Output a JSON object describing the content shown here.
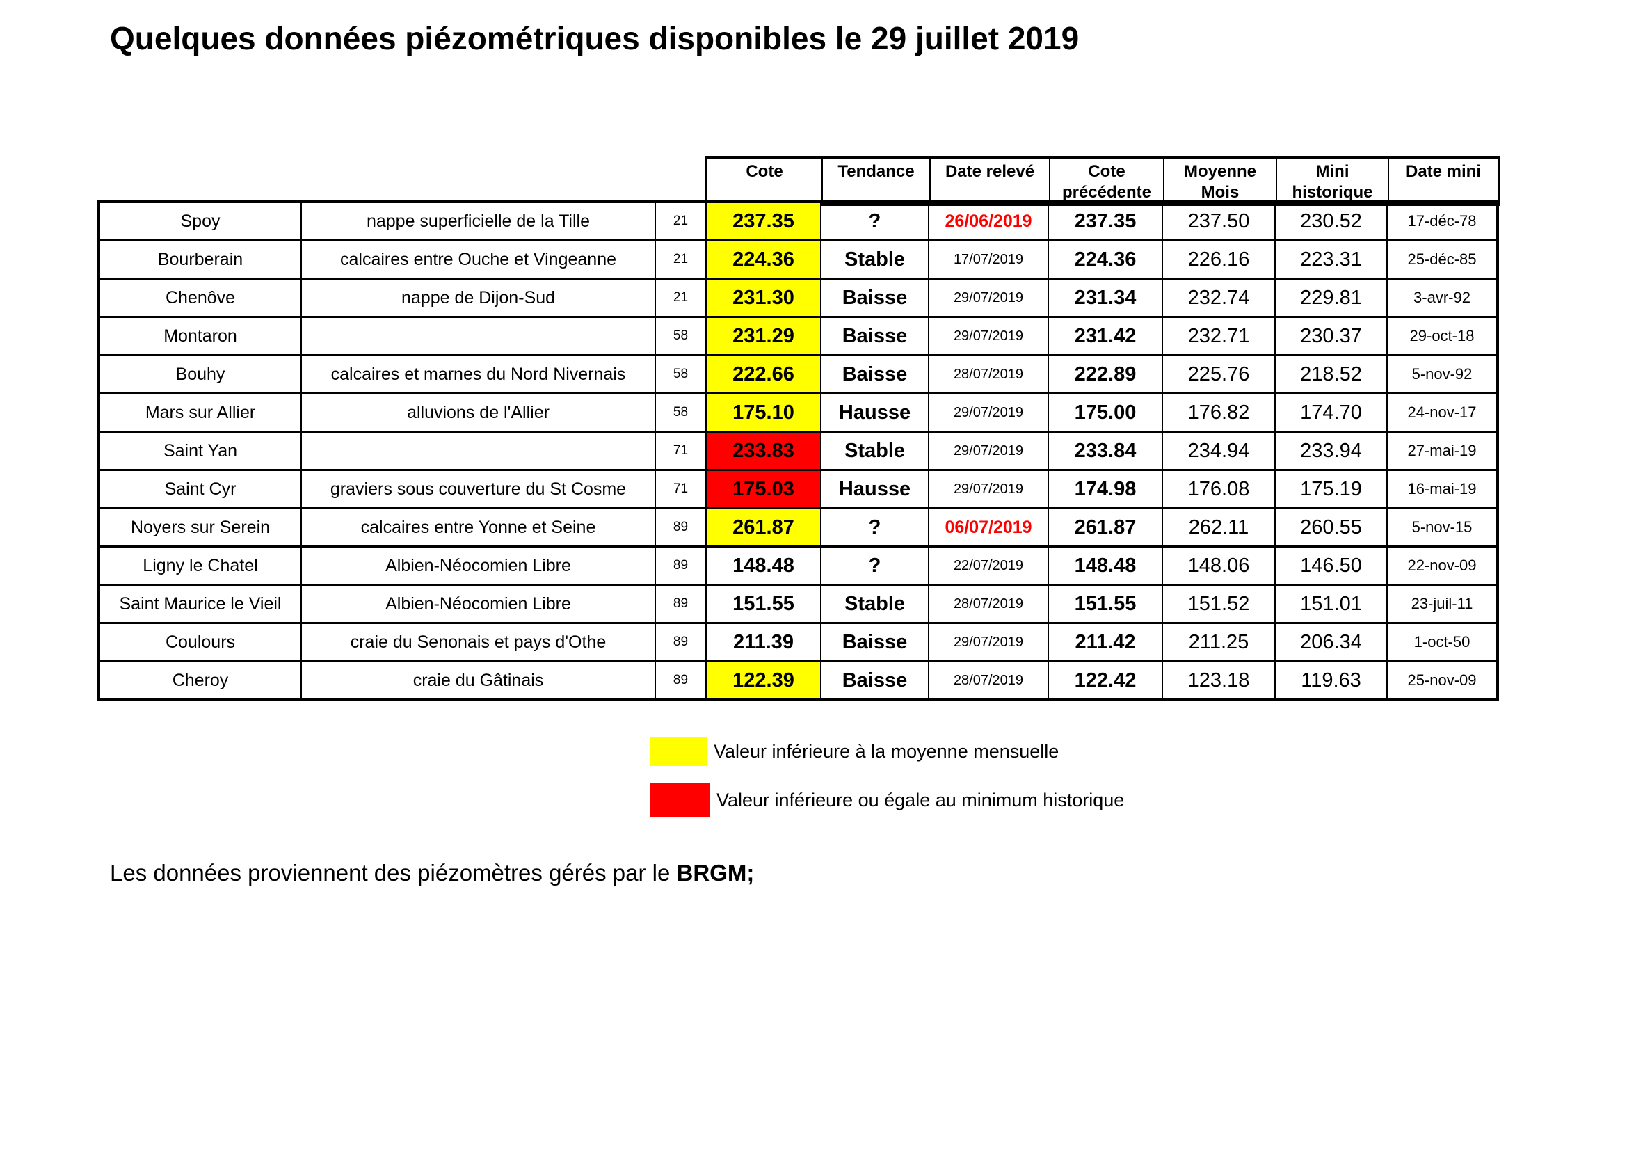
{
  "title": "Quelques données piézométriques disponibles le 29 juillet 2019",
  "colors": {
    "below_monthly_mean": "#FFFF00",
    "below_historic_min": "#FF0000",
    "alert_date_text": "#FF0000"
  },
  "table": {
    "headers": [
      "Cote",
      "Tendance",
      "Date relevé",
      "Cote précédente",
      "Moyenne Mois",
      "Mini historique",
      "Date mini"
    ],
    "rows": [
      {
        "station": "Spoy",
        "aquifer": "nappe superficielle de la Tille",
        "dept": "21",
        "cote": "237.35",
        "cote_highlight": "yellow",
        "tendance": "?",
        "date_releve": "26/06/2019",
        "date_releve_alert": true,
        "cote_precedente": "237.35",
        "moyenne_mois": "237.50",
        "mini_historique": "230.52",
        "date_mini": "17-déc-78"
      },
      {
        "station": "Bourberain",
        "aquifer": "calcaires entre Ouche et Vingeanne",
        "dept": "21",
        "cote": "224.36",
        "cote_highlight": "yellow",
        "tendance": "Stable",
        "date_releve": "17/07/2019",
        "date_releve_alert": false,
        "cote_precedente": "224.36",
        "moyenne_mois": "226.16",
        "mini_historique": "223.31",
        "date_mini": "25-déc-85"
      },
      {
        "station": "Chenôve",
        "aquifer": "nappe de Dijon-Sud",
        "dept": "21",
        "cote": "231.30",
        "cote_highlight": "yellow",
        "tendance": "Baisse",
        "date_releve": "29/07/2019",
        "date_releve_alert": false,
        "cote_precedente": "231.34",
        "moyenne_mois": "232.74",
        "mini_historique": "229.81",
        "date_mini": "3-avr-92"
      },
      {
        "station": "Montaron",
        "aquifer": "",
        "dept": "58",
        "cote": "231.29",
        "cote_highlight": "yellow",
        "tendance": "Baisse",
        "date_releve": "29/07/2019",
        "date_releve_alert": false,
        "cote_precedente": "231.42",
        "moyenne_mois": "232.71",
        "mini_historique": "230.37",
        "date_mini": "29-oct-18"
      },
      {
        "station": "Bouhy",
        "aquifer": "calcaires et marnes du Nord Nivernais",
        "dept": "58",
        "cote": "222.66",
        "cote_highlight": "yellow",
        "tendance": "Baisse",
        "date_releve": "28/07/2019",
        "date_releve_alert": false,
        "cote_precedente": "222.89",
        "moyenne_mois": "225.76",
        "mini_historique": "218.52",
        "date_mini": "5-nov-92"
      },
      {
        "station": "Mars sur Allier",
        "aquifer": "alluvions de l'Allier",
        "dept": "58",
        "cote": "175.10",
        "cote_highlight": "yellow",
        "tendance": "Hausse",
        "date_releve": "29/07/2019",
        "date_releve_alert": false,
        "cote_precedente": "175.00",
        "moyenne_mois": "176.82",
        "mini_historique": "174.70",
        "date_mini": "24-nov-17"
      },
      {
        "station": "Saint Yan",
        "aquifer": "",
        "dept": "71",
        "cote": "233.83",
        "cote_highlight": "red",
        "tendance": "Stable",
        "date_releve": "29/07/2019",
        "date_releve_alert": false,
        "cote_precedente": "233.84",
        "moyenne_mois": "234.94",
        "mini_historique": "233.94",
        "date_mini": "27-mai-19"
      },
      {
        "station": "Saint Cyr",
        "aquifer": "graviers sous couverture du St Cosme",
        "dept": "71",
        "cote": "175.03",
        "cote_highlight": "red",
        "tendance": "Hausse",
        "date_releve": "29/07/2019",
        "date_releve_alert": false,
        "cote_precedente": "174.98",
        "moyenne_mois": "176.08",
        "mini_historique": "175.19",
        "date_mini": "16-mai-19"
      },
      {
        "station": "Noyers sur Serein",
        "aquifer": "calcaires entre Yonne et Seine",
        "dept": "89",
        "cote": "261.87",
        "cote_highlight": "yellow",
        "tendance": "?",
        "date_releve": "06/07/2019",
        "date_releve_alert": true,
        "cote_precedente": "261.87",
        "moyenne_mois": "262.11",
        "mini_historique": "260.55",
        "date_mini": "5-nov-15"
      },
      {
        "station": "Ligny le Chatel",
        "aquifer": "Albien-Néocomien Libre",
        "dept": "89",
        "cote": "148.48",
        "cote_highlight": null,
        "tendance": "?",
        "date_releve": "22/07/2019",
        "date_releve_alert": false,
        "cote_precedente": "148.48",
        "moyenne_mois": "148.06",
        "mini_historique": "146.50",
        "date_mini": "22-nov-09"
      },
      {
        "station": "Saint Maurice le Vieil",
        "aquifer": "Albien-Néocomien Libre",
        "dept": "89",
        "cote": "151.55",
        "cote_highlight": null,
        "tendance": "Stable",
        "date_releve": "28/07/2019",
        "date_releve_alert": false,
        "cote_precedente": "151.55",
        "moyenne_mois": "151.52",
        "mini_historique": "151.01",
        "date_mini": "23-juil-11"
      },
      {
        "station": "Coulours",
        "aquifer": "craie du Senonais et pays d'Othe",
        "dept": "89",
        "cote": "211.39",
        "cote_highlight": null,
        "tendance": "Baisse",
        "date_releve": "29/07/2019",
        "date_releve_alert": false,
        "cote_precedente": "211.42",
        "moyenne_mois": "211.25",
        "mini_historique": "206.34",
        "date_mini": "1-oct-50"
      },
      {
        "station": "Cheroy",
        "aquifer": "craie du Gâtinais",
        "dept": "89",
        "cote": "122.39",
        "cote_highlight": "yellow",
        "tendance": "Baisse",
        "date_releve": "28/07/2019",
        "date_releve_alert": false,
        "cote_precedente": "122.42",
        "moyenne_mois": "123.18",
        "mini_historique": "119.63",
        "date_mini": "25-nov-09"
      }
    ]
  },
  "legend": [
    {
      "color": "#FFFF00",
      "label": "Valeur inférieure à la moyenne mensuelle"
    },
    {
      "color": "#FF0000",
      "label": "Valeur inférieure ou égale au minimum historique"
    }
  ],
  "footer": {
    "text": "Les données proviennent des piézomètres gérés par le ",
    "bold": "BRGM;"
  }
}
